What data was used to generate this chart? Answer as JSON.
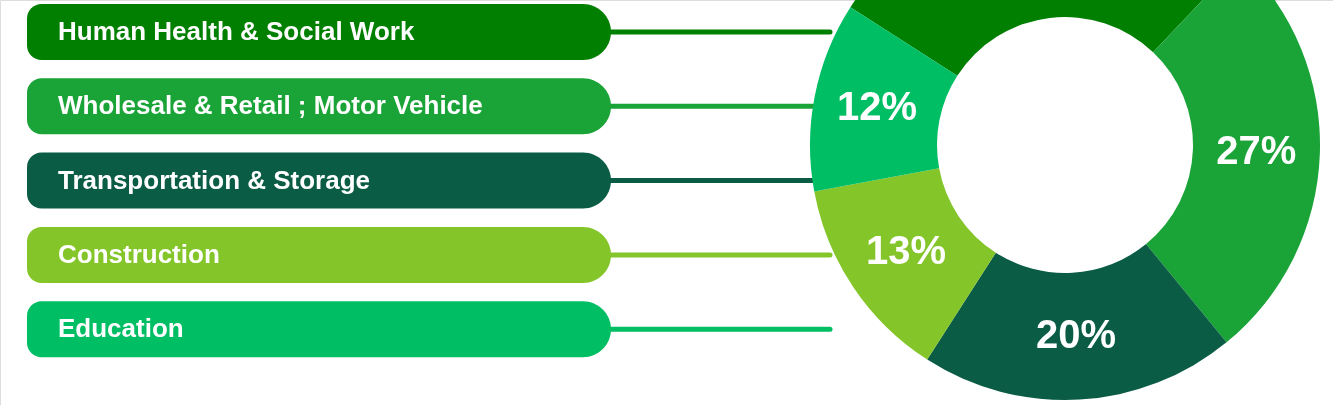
{
  "chart_data": {
    "type": "donut",
    "categories": [
      "Human Health & Social Work",
      "Wholesale & Retail ; Motor Vehicle",
      "Transportation & Storage",
      "Construction",
      "Education"
    ],
    "values": [
      28,
      27,
      20,
      13,
      12
    ],
    "colors": [
      "#007f00",
      "#1aa337",
      "#0a5c44",
      "#84c52a",
      "#00be64"
    ],
    "value_labels": [
      null,
      "27%",
      "20%",
      "13%",
      "12%"
    ],
    "legend": "left"
  }
}
